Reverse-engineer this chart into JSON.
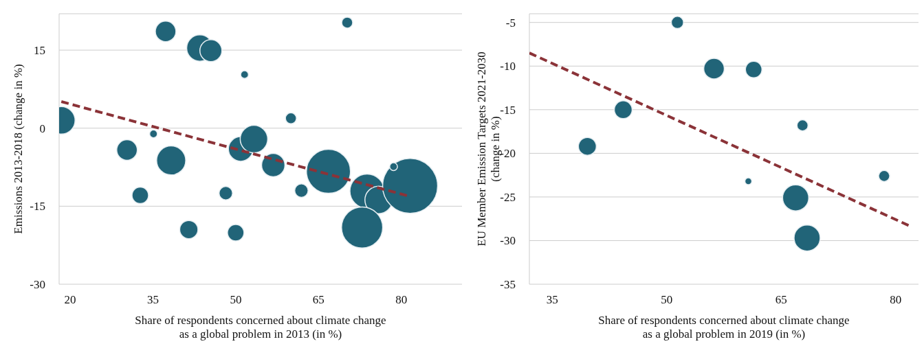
{
  "chart_data": [
    {
      "type": "bubble",
      "xlabel": "Share of respondents concerned about climate change\nas a global problem in 2013 (in %)",
      "ylabel": "Emissions 2013-2018 (change in %)",
      "xlim": [
        18,
        91
      ],
      "xticks": [
        20,
        35,
        50,
        65,
        80
      ],
      "ylim": [
        -30,
        22
      ],
      "yticks": [
        -30,
        -15,
        0,
        15
      ],
      "grid": "y",
      "series": [
        {
          "type": "bubble",
          "color": "#216478",
          "marker": "circle",
          "x": [
            18.4,
            37.3,
            43.5,
            45.5,
            51.6,
            70.2,
            60.0,
            35.1,
            30.3,
            38.3,
            50.9,
            53.3,
            56.8,
            66.8,
            32.7,
            48.2,
            61.9,
            73.8,
            75.9,
            81.6,
            78.6,
            72.9,
            41.5,
            50.0
          ],
          "values": [
            1.5,
            18.6,
            15.4,
            14.9,
            10.3,
            20.3,
            1.9,
            -1.1,
            -4.2,
            -6.2,
            -4.0,
            -2.1,
            -7.1,
            -8.3,
            -12.9,
            -12.5,
            -12.0,
            -12.1,
            -13.8,
            -11.1,
            -7.4,
            -19.1,
            -19.5,
            -20.1
          ],
          "sizes": [
            0.25,
            0.14,
            0.23,
            0.16,
            0.02,
            0.04,
            0.04,
            0.02,
            0.14,
            0.28,
            0.2,
            0.25,
            0.18,
            0.64,
            0.09,
            0.06,
            0.06,
            0.39,
            0.25,
            1,
            0.02,
            0.56,
            0.11,
            0.09
          ]
        },
        {
          "type": "line",
          "color": "#8b3338",
          "line_style": "dashed",
          "x": [
            18.4,
            81.5
          ],
          "values": [
            5.1,
            -13.1
          ]
        }
      ]
    },
    {
      "type": "bubble",
      "xlabel": "Share of respondents concerned about climate change\nas a global problem in 2019 (in %)",
      "ylabel": "EU Member Emission Targets 2021-2030\n(change in %)",
      "xlim": [
        32,
        83
      ],
      "xticks": [
        35,
        50,
        65,
        80
      ],
      "ylim": [
        -35,
        -4
      ],
      "yticks": [
        -35,
        -30,
        -25,
        -20,
        -15,
        -10,
        -5
      ],
      "grid": "y",
      "series": [
        {
          "type": "bubble",
          "color": "#216478",
          "marker": "circle",
          "x": [
            51.4,
            56.2,
            61.4,
            44.3,
            67.8,
            39.6,
            60.7,
            66.9,
            78.5,
            68.4
          ],
          "values": [
            -5.0,
            -10.3,
            -10.4,
            -15.0,
            -16.8,
            -19.2,
            -23.2,
            -25.1,
            -22.6,
            -29.7
          ],
          "sizes": [
            0.22,
            0.62,
            0.4,
            0.47,
            0.18,
            0.47,
            0.07,
            1,
            0.18,
            1
          ]
        },
        {
          "type": "line",
          "color": "#8b3338",
          "line_style": "dashed",
          "x": [
            32.0,
            81.8
          ],
          "values": [
            -8.5,
            -28.3
          ]
        }
      ]
    }
  ]
}
